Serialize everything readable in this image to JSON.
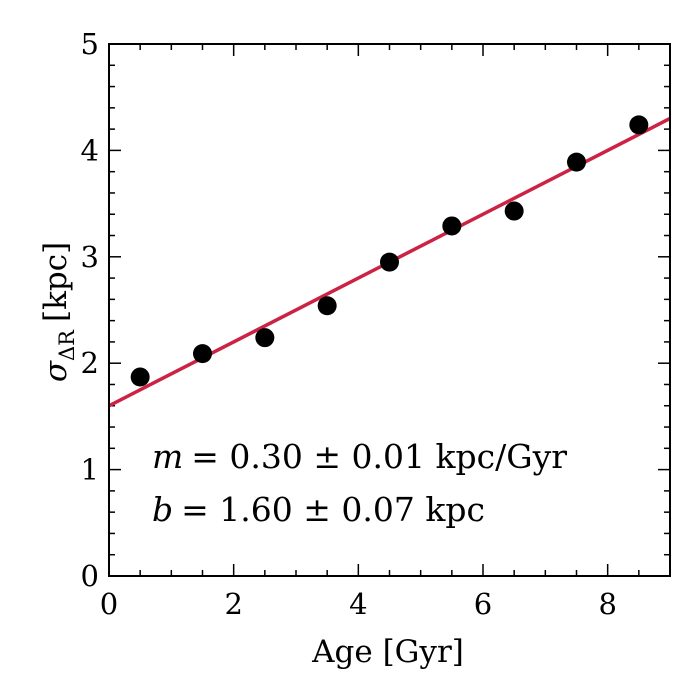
{
  "chart_data": {
    "type": "scatter",
    "xlabel": "Age [Gyr]",
    "ylabel": {
      "symbol": "σ",
      "subscript": "ΔR",
      "unit": "[kpc]"
    },
    "xlim": [
      0,
      9
    ],
    "ylim": [
      0,
      5
    ],
    "x_ticks": [
      0,
      2,
      4,
      6,
      8
    ],
    "y_ticks": [
      0,
      1,
      2,
      3,
      4,
      5
    ],
    "x_minor_step": 0.5,
    "y_minor_step": 0.2,
    "grid": false,
    "legend": "none",
    "series": [
      {
        "type": "scatter",
        "color": "#000000",
        "x": [
          0.5,
          1.5,
          2.5,
          3.5,
          4.5,
          5.5,
          6.5,
          7.5,
          8.5
        ],
        "y": [
          1.87,
          2.09,
          2.24,
          2.54,
          2.95,
          3.29,
          3.43,
          3.89,
          4.24
        ]
      },
      {
        "type": "line",
        "color": "#cc2244",
        "slope": 0.3,
        "intercept": 1.6
      }
    ],
    "annotations": [
      {
        "var": "m",
        "text": "= 0.30 ± 0.01 kpc/Gyr"
      },
      {
        "var": "b",
        "text": "= 1.60 ± 0.07 kpc"
      }
    ]
  }
}
